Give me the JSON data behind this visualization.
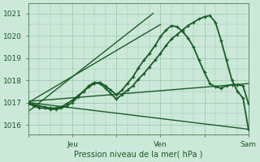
{
  "background_color": "#cce8d8",
  "grid_color": "#99c4ac",
  "line_color": "#1a5c28",
  "marker_color": "#1a5c28",
  "ylabel_ticks": [
    1016,
    1017,
    1018,
    1019,
    1020,
    1021
  ],
  "xlabel": "Pression niveau de la mer( hPa )",
  "x_tick_labels": [
    "",
    "Jeu",
    "",
    "Ven",
    "",
    "Sam"
  ],
  "x_tick_positions": [
    0,
    24,
    48,
    72,
    96,
    120
  ],
  "ylim": [
    1015.55,
    1021.45
  ],
  "xlim": [
    0,
    120
  ],
  "series": [
    {
      "x": [
        0,
        68
      ],
      "y": [
        1016.6,
        1021.0
      ],
      "marker": null,
      "linewidth": 1.0,
      "linestyle": "-"
    },
    {
      "x": [
        0,
        72
      ],
      "y": [
        1017.0,
        1020.5
      ],
      "marker": null,
      "linewidth": 1.0,
      "linestyle": "-"
    },
    {
      "x": [
        0,
        120
      ],
      "y": [
        1017.0,
        1015.8
      ],
      "marker": null,
      "linewidth": 1.0,
      "linestyle": "-"
    },
    {
      "x": [
        0,
        120
      ],
      "y": [
        1017.05,
        1017.85
      ],
      "marker": null,
      "linewidth": 1.0,
      "linestyle": "-"
    },
    {
      "x": [
        0,
        3,
        6,
        9,
        12,
        15,
        18,
        21,
        24,
        27,
        30,
        33,
        36,
        39,
        42,
        45,
        48,
        51,
        54,
        57,
        60,
        63,
        66,
        69,
        72,
        75,
        78,
        81,
        84,
        87,
        90,
        93,
        96,
        99,
        102,
        105,
        108,
        111,
        114,
        117,
        120
      ],
      "y": [
        1017.0,
        1016.9,
        1016.85,
        1016.8,
        1016.75,
        1016.75,
        1016.8,
        1016.95,
        1017.1,
        1017.3,
        1017.5,
        1017.7,
        1017.85,
        1017.9,
        1017.75,
        1017.55,
        1017.35,
        1017.55,
        1017.85,
        1018.15,
        1018.55,
        1018.9,
        1019.2,
        1019.55,
        1019.95,
        1020.25,
        1020.45,
        1020.4,
        1020.2,
        1019.9,
        1019.5,
        1018.9,
        1018.35,
        1017.85,
        1017.7,
        1017.65,
        1017.75,
        1017.8,
        1017.8,
        1017.75,
        1016.95
      ],
      "marker": "+",
      "linewidth": 1.3,
      "linestyle": "-"
    },
    {
      "x": [
        0,
        3,
        6,
        9,
        12,
        15,
        18,
        21,
        24,
        27,
        30,
        33,
        36,
        39,
        42,
        45,
        48,
        51,
        54,
        57,
        60,
        63,
        66,
        69,
        72,
        75,
        78,
        81,
        84,
        87,
        90,
        93,
        96,
        99,
        102,
        105,
        108,
        111,
        114,
        117,
        120
      ],
      "y": [
        1016.95,
        1016.85,
        1016.75,
        1016.75,
        1016.7,
        1016.7,
        1016.75,
        1016.85,
        1017.0,
        1017.25,
        1017.5,
        1017.75,
        1017.9,
        1017.85,
        1017.65,
        1017.4,
        1017.15,
        1017.35,
        1017.55,
        1017.75,
        1018.05,
        1018.3,
        1018.6,
        1018.9,
        1019.2,
        1019.55,
        1019.85,
        1020.05,
        1020.25,
        1020.45,
        1020.6,
        1020.75,
        1020.85,
        1020.9,
        1020.6,
        1019.8,
        1018.9,
        1018.0,
        1017.5,
        1017.2,
        1015.8
      ],
      "marker": "+",
      "linewidth": 1.3,
      "linestyle": "-"
    }
  ]
}
